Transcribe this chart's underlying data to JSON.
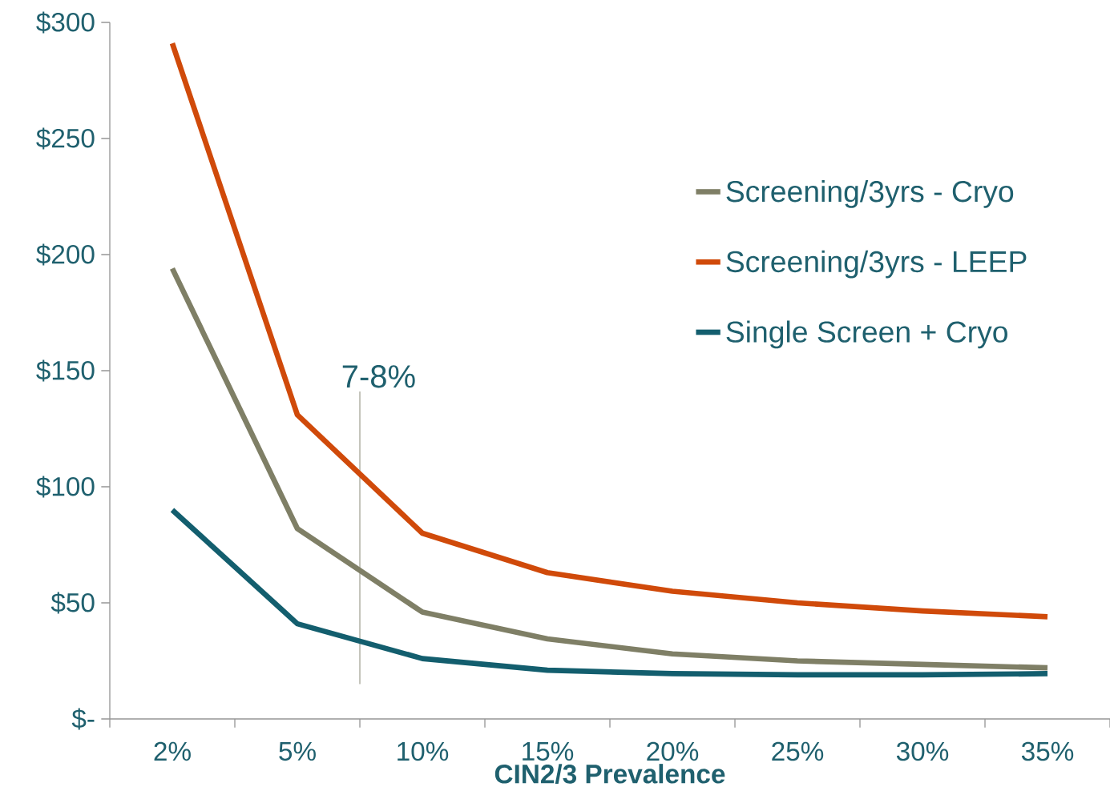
{
  "chart_data": {
    "type": "line",
    "xlabel": "CIN2/3 Prevalence",
    "categories": [
      "2%",
      "5%",
      "10%",
      "15%",
      "20%",
      "25%",
      "30%",
      "35%"
    ],
    "series": [
      {
        "name": "Screening/3yrs - Cryo",
        "color": "#7f7f66",
        "values": [
          194,
          82,
          46,
          34.5,
          28,
          25,
          23.5,
          22
        ]
      },
      {
        "name": "Screening/3yrs - LEEP",
        "color": "#d04a0a",
        "values": [
          291,
          131,
          80,
          63,
          55,
          50,
          46.5,
          44
        ]
      },
      {
        "name": "Single Screen + Cryo",
        "color": "#135e6e",
        "values": [
          90,
          41,
          26,
          21,
          19.5,
          19,
          19,
          19.5
        ]
      }
    ],
    "ylim": [
      0,
      300
    ],
    "yticks": [
      {
        "value": 0,
        "label": "$-"
      },
      {
        "value": 50,
        "label": "$50"
      },
      {
        "value": 100,
        "label": "$100"
      },
      {
        "value": 150,
        "label": "$150"
      },
      {
        "value": 200,
        "label": "$200"
      },
      {
        "value": 250,
        "label": "$250"
      },
      {
        "value": 300,
        "label": "$300"
      }
    ],
    "annotations": [
      "7-8%"
    ],
    "legend": "right",
    "marker": "none",
    "line_style": "solid"
  }
}
